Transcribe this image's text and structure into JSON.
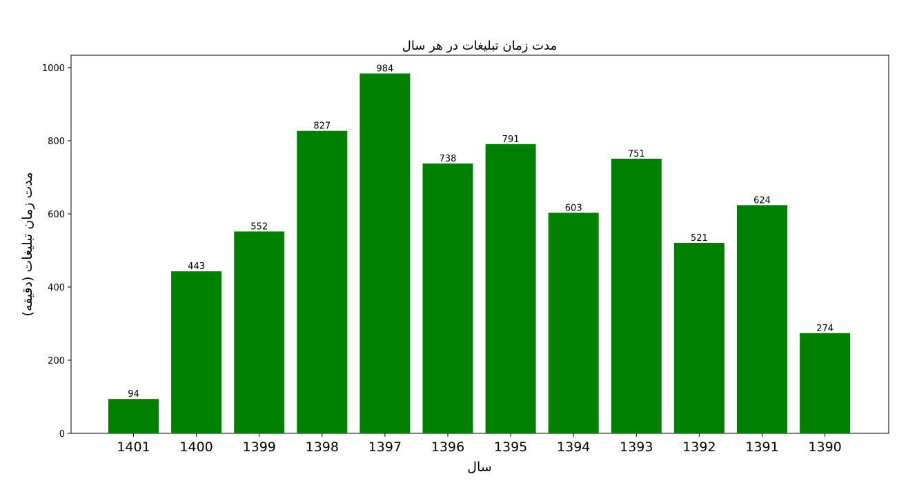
{
  "chart_data": {
    "type": "bar",
    "title": "مدت زمان تبلیغات در هر سال",
    "xlabel": "سال",
    "ylabel": "مدت زمان تبلیغات (دقیقه)",
    "categories": [
      "1401",
      "1400",
      "1399",
      "1398",
      "1397",
      "1396",
      "1395",
      "1394",
      "1393",
      "1392",
      "1391",
      "1390"
    ],
    "values": [
      94,
      443,
      552,
      827,
      984,
      738,
      791,
      603,
      751,
      521,
      624,
      274
    ],
    "data_labels": [
      "94",
      "443",
      "552",
      "827",
      "984",
      "738",
      "791",
      "603",
      "751",
      "521",
      "624",
      "274"
    ],
    "ylim": [
      0,
      1034
    ],
    "yticks": [
      0,
      200,
      400,
      600,
      800,
      1000
    ],
    "ytick_labels": [
      "0",
      "200",
      "400",
      "600",
      "800",
      "1000"
    ],
    "grid": false,
    "bar_color": "#008000"
  }
}
